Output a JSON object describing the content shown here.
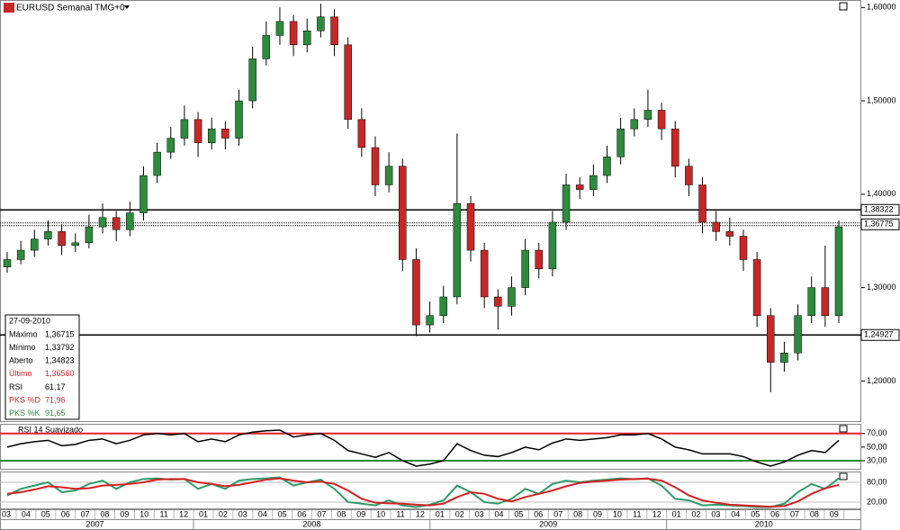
{
  "chart_data": {
    "type": "candlestick",
    "title": "EURUSD Semanal TMG+0",
    "up_color": "#2e8b3e",
    "down_color": "#c62828",
    "ylim": [
      1.157,
      1.608
    ],
    "yticks": [
      {
        "value": 1.6,
        "label": "1,60000"
      },
      {
        "value": 1.5,
        "label": "1,50000"
      },
      {
        "value": 1.4,
        "label": "1,40000"
      },
      {
        "value": 1.3,
        "label": "1,30000"
      },
      {
        "value": 1.2,
        "label": "1,20000"
      }
    ],
    "levels": [
      {
        "value": 1.38322,
        "label": "1,38322",
        "style": "solid"
      },
      {
        "value": 1.36775,
        "label": "1,36775",
        "style": "dotted"
      },
      {
        "value": 1.24927,
        "label": "1,24927",
        "style": "solid"
      }
    ],
    "ohlc": [
      [
        1.322,
        1.338,
        1.316,
        1.33
      ],
      [
        1.33,
        1.35,
        1.325,
        1.34
      ],
      [
        1.34,
        1.362,
        1.333,
        1.352
      ],
      [
        1.352,
        1.372,
        1.345,
        1.36
      ],
      [
        1.36,
        1.368,
        1.335,
        1.345
      ],
      [
        1.345,
        1.358,
        1.338,
        1.348
      ],
      [
        1.348,
        1.378,
        1.342,
        1.365
      ],
      [
        1.365,
        1.39,
        1.358,
        1.375
      ],
      [
        1.375,
        1.382,
        1.35,
        1.362
      ],
      [
        1.362,
        1.392,
        1.355,
        1.38
      ],
      [
        1.38,
        1.43,
        1.372,
        1.42
      ],
      [
        1.42,
        1.455,
        1.412,
        1.445
      ],
      [
        1.445,
        1.472,
        1.438,
        1.46
      ],
      [
        1.46,
        1.495,
        1.452,
        1.48
      ],
      [
        1.48,
        1.488,
        1.44,
        1.455
      ],
      [
        1.455,
        1.482,
        1.448,
        1.47
      ],
      [
        1.47,
        1.478,
        1.448,
        1.46
      ],
      [
        1.46,
        1.512,
        1.452,
        1.5
      ],
      [
        1.5,
        1.558,
        1.492,
        1.545
      ],
      [
        1.545,
        1.585,
        1.538,
        1.57
      ],
      [
        1.57,
        1.6,
        1.56,
        1.585
      ],
      [
        1.585,
        1.592,
        1.548,
        1.56
      ],
      [
        1.56,
        1.588,
        1.552,
        1.575
      ],
      [
        1.575,
        1.604,
        1.568,
        1.59
      ],
      [
        1.59,
        1.598,
        1.548,
        1.56
      ],
      [
        1.56,
        1.568,
        1.47,
        1.48
      ],
      [
        1.48,
        1.492,
        1.44,
        1.45
      ],
      [
        1.45,
        1.462,
        1.398,
        1.41
      ],
      [
        1.41,
        1.445,
        1.402,
        1.43
      ],
      [
        1.43,
        1.438,
        1.318,
        1.33
      ],
      [
        1.33,
        1.342,
        1.248,
        1.26
      ],
      [
        1.26,
        1.285,
        1.252,
        1.27
      ],
      [
        1.27,
        1.302,
        1.262,
        1.29
      ],
      [
        1.29,
        1.465,
        1.282,
        1.39
      ],
      [
        1.39,
        1.398,
        1.328,
        1.34
      ],
      [
        1.34,
        1.348,
        1.278,
        1.29
      ],
      [
        1.29,
        1.298,
        1.255,
        1.28
      ],
      [
        1.28,
        1.312,
        1.27,
        1.3
      ],
      [
        1.3,
        1.352,
        1.292,
        1.34
      ],
      [
        1.34,
        1.348,
        1.31,
        1.32
      ],
      [
        1.32,
        1.382,
        1.312,
        1.37
      ],
      [
        1.37,
        1.422,
        1.362,
        1.41
      ],
      [
        1.41,
        1.418,
        1.395,
        1.405
      ],
      [
        1.405,
        1.432,
        1.398,
        1.42
      ],
      [
        1.42,
        1.452,
        1.412,
        1.44
      ],
      [
        1.44,
        1.482,
        1.432,
        1.47
      ],
      [
        1.47,
        1.492,
        1.462,
        1.48
      ],
      [
        1.48,
        1.512,
        1.472,
        1.49
      ],
      [
        1.49,
        1.498,
        1.458,
        1.47
      ],
      [
        1.47,
        1.478,
        1.418,
        1.43
      ],
      [
        1.43,
        1.438,
        1.398,
        1.41
      ],
      [
        1.41,
        1.418,
        1.358,
        1.37
      ],
      [
        1.37,
        1.382,
        1.35,
        1.36
      ],
      [
        1.36,
        1.375,
        1.345,
        1.355
      ],
      [
        1.355,
        1.362,
        1.318,
        1.33
      ],
      [
        1.33,
        1.338,
        1.258,
        1.27
      ],
      [
        1.27,
        1.278,
        1.188,
        1.22
      ],
      [
        1.22,
        1.242,
        1.21,
        1.23
      ],
      [
        1.23,
        1.282,
        1.222,
        1.27
      ],
      [
        1.27,
        1.312,
        1.262,
        1.3
      ],
      [
        1.3,
        1.345,
        1.258,
        1.27
      ],
      [
        1.27,
        1.372,
        1.262,
        1.365
      ]
    ],
    "info_panel": {
      "date": "27-09-2010",
      "rows": [
        {
          "label": "Máximo",
          "value": "1,36715",
          "color": "#000000"
        },
        {
          "label": "Mínimo",
          "value": "1,33792",
          "color": "#000000"
        },
        {
          "label": "Aberto",
          "value": "1,34823",
          "color": "#000000"
        },
        {
          "label": "Último",
          "value": "1,36560",
          "color": "#c62828"
        },
        {
          "label": "RSI",
          "value": "61,17",
          "color": "#000000"
        },
        {
          "label": "PKS %D",
          "value": "71,96",
          "color": "#c62828"
        },
        {
          "label": "PKS %K",
          "value": "91,65",
          "color": "#2e8b3e"
        }
      ]
    },
    "rsi": {
      "title": "RSI 14 Suavizado",
      "color": "#000000",
      "ylim": [
        18,
        83
      ],
      "yticks": [
        {
          "value": 70,
          "label": "70,00"
        },
        {
          "value": 50,
          "label": "50,00"
        },
        {
          "value": 30,
          "label": "30,00"
        }
      ],
      "upper": 70,
      "upper_color": "#e02020",
      "lower": 30,
      "lower_color": "#1a8a1a",
      "values": [
        50,
        55,
        58,
        60,
        52,
        54,
        60,
        62,
        55,
        60,
        68,
        70,
        68,
        70,
        58,
        62,
        58,
        68,
        72,
        74,
        75,
        65,
        68,
        70,
        60,
        45,
        40,
        35,
        42,
        30,
        22,
        25,
        30,
        55,
        45,
        38,
        36,
        42,
        50,
        46,
        56,
        62,
        60,
        62,
        64,
        68,
        68,
        70,
        62,
        50,
        46,
        40,
        40,
        40,
        36,
        28,
        22,
        28,
        38,
        45,
        42,
        60
      ]
    },
    "stochastic": {
      "ylim": [
        -2,
        110
      ],
      "yticks": [
        {
          "value": 80,
          "label": "80,00"
        },
        {
          "value": 20,
          "label": "20,00"
        }
      ],
      "series": [
        {
          "color": "#2e9a6a",
          "values": [
            40,
            60,
            70,
            80,
            50,
            55,
            75,
            85,
            60,
            80,
            90,
            92,
            88,
            90,
            60,
            75,
            60,
            85,
            90,
            92,
            95,
            70,
            80,
            88,
            60,
            20,
            15,
            10,
            25,
            10,
            5,
            12,
            25,
            70,
            50,
            20,
            15,
            30,
            60,
            45,
            75,
            85,
            80,
            85,
            88,
            92,
            90,
            92,
            70,
            30,
            25,
            10,
            12,
            10,
            8,
            5,
            5,
            15,
            50,
            75,
            60,
            92
          ]
        },
        {
          "color": "#d42020",
          "values": [
            45,
            50,
            58,
            68,
            65,
            60,
            62,
            70,
            72,
            75,
            80,
            88,
            90,
            90,
            80,
            75,
            68,
            72,
            80,
            88,
            92,
            85,
            80,
            82,
            75,
            55,
            30,
            18,
            16,
            15,
            12,
            10,
            15,
            35,
            50,
            45,
            30,
            22,
            35,
            45,
            55,
            68,
            78,
            82,
            85,
            88,
            90,
            91,
            85,
            65,
            40,
            25,
            18,
            12,
            10,
            8,
            6,
            8,
            22,
            45,
            62,
            72
          ]
        }
      ]
    },
    "months": [
      "03",
      "04",
      "05",
      "06",
      "07",
      "08",
      "09",
      "10",
      "11",
      "12",
      "01",
      "02",
      "03",
      "04",
      "05",
      "06",
      "07",
      "08",
      "09",
      "10",
      "11",
      "12",
      "01",
      "02",
      "03",
      "04",
      "05",
      "06",
      "07",
      "08",
      "09",
      "10",
      "11",
      "12",
      "01",
      "02",
      "03",
      "04",
      "05",
      "06",
      "07",
      "08",
      "09"
    ],
    "years": [
      "2007",
      "2008",
      "2009",
      "2010"
    ]
  }
}
